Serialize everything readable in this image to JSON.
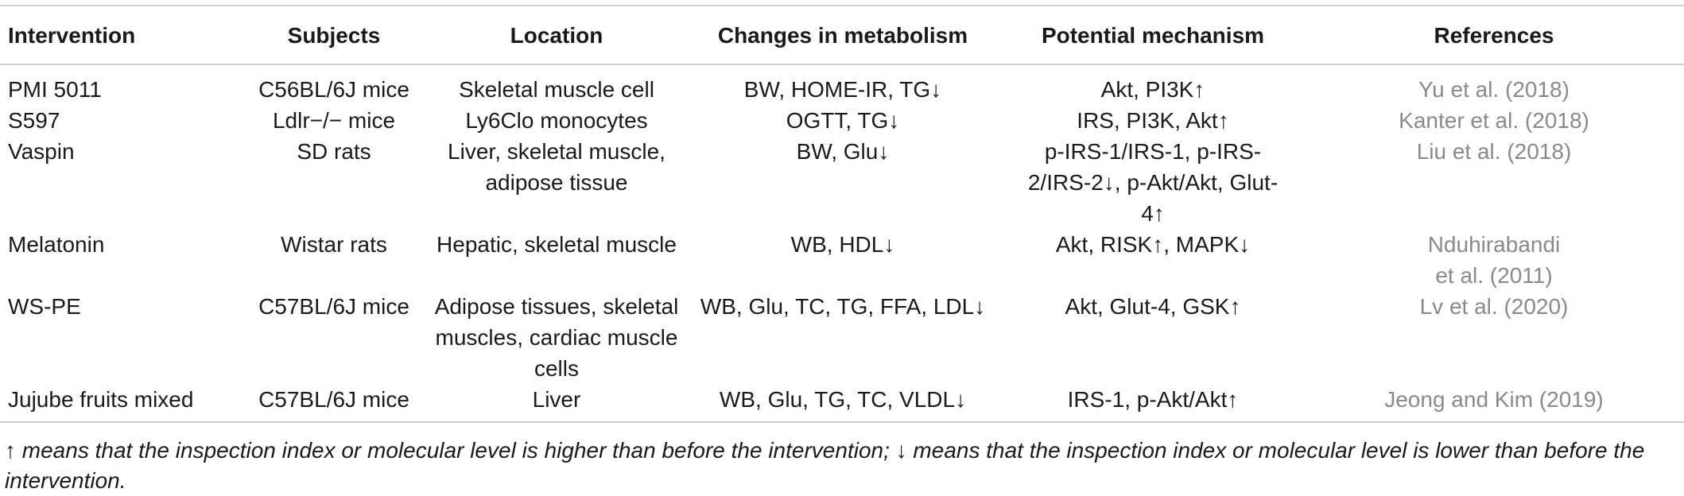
{
  "table": {
    "headers": [
      "Intervention",
      "Subjects",
      "Location",
      "Changes in metabolism",
      "Potential mechanism",
      "References"
    ],
    "rows": [
      [
        "PMI 5011",
        "C56BL/6J mice",
        "Skeletal muscle cell",
        "BW, HOME-IR, TG↓",
        "Akt, PI3K↑",
        "Yu et al. (2018)"
      ],
      [
        "S597",
        "Ldlr−/− mice",
        "Ly6Clo monocytes",
        "OGTT, TG↓",
        "IRS, PI3K, Akt↑",
        "Kanter et al. (2018)"
      ],
      [
        "Vaspin",
        "SD rats",
        "Liver, skeletal muscle, adipose tissue",
        "BW, Glu↓",
        "p-IRS-1/IRS-1, p-IRS-2/IRS-2↓, p-Akt/Akt, Glut-4↑",
        "Liu et al. (2018)"
      ],
      [
        "Melatonin",
        "Wistar rats",
        "Hepatic, skeletal muscle",
        "WB, HDL↓",
        "Akt, RISK↑, MAPK↓",
        "Nduhirabandi et al. (2011)"
      ],
      [
        "WS-PE",
        "C57BL/6J mice",
        "Adipose tissues, skeletal muscles, cardiac muscle cells",
        "WB, Glu, TC, TG, FFA, LDL↓",
        "Akt, Glut-4, GSK↑",
        "Lv et al. (2020)"
      ],
      [
        "Jujube fruits mixed",
        "C57BL/6J mice",
        "Liver",
        "WB, Glu, TG, TC, VLDL↓",
        "IRS-1, p-Akt/Akt↑",
        "Jeong and Kim (2019)"
      ]
    ]
  },
  "footnote": "↑ means that the inspection index or molecular level is higher than before the intervention; ↓ means that the inspection index or molecular level is lower than before the intervention.",
  "colors": {
    "text": "#1a1a1a",
    "reference": "#8a8a8a",
    "rule": "#cfcfcf"
  }
}
